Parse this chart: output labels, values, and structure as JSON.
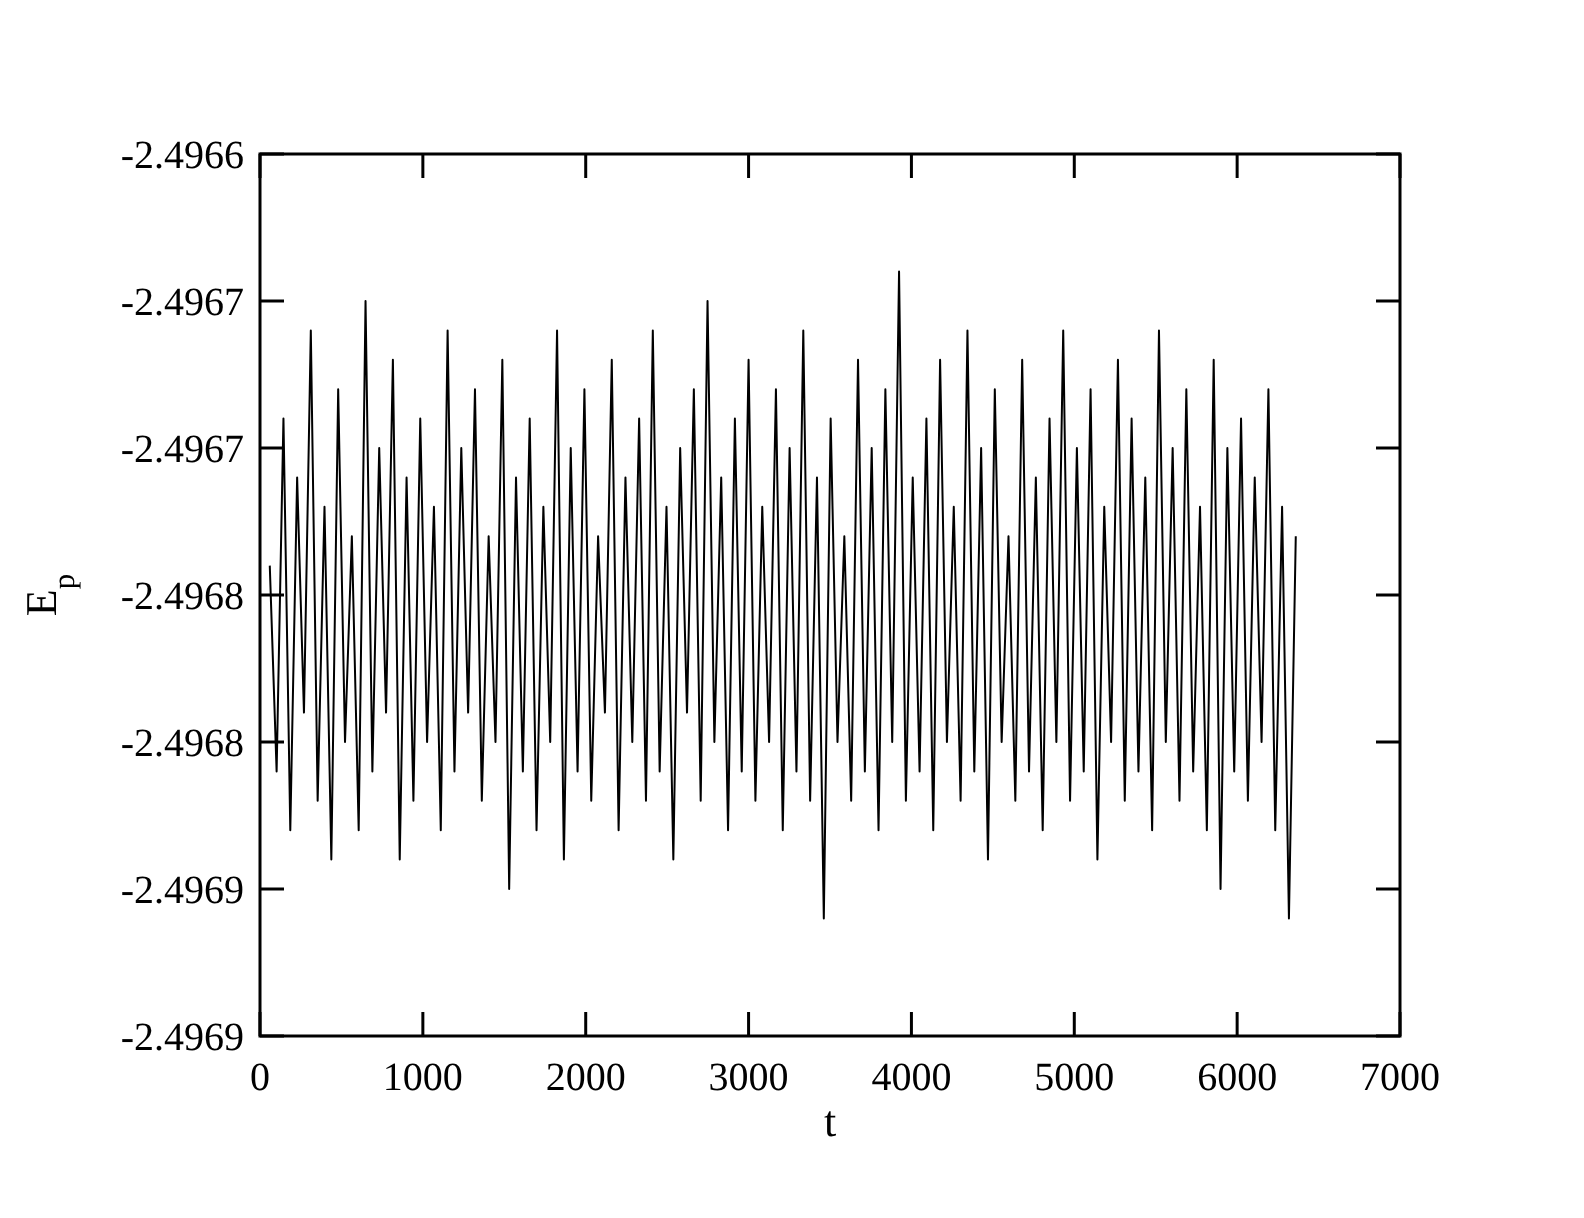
{
  "chart_data": {
    "type": "line",
    "xlabel": "t",
    "ylabel": "E$_{p}$",
    "xlim": [
      0,
      7000
    ],
    "xticks": [
      0,
      1000,
      2000,
      3000,
      4000,
      5000,
      6000,
      7000
    ],
    "ylim": [
      -2.4969,
      -2.4966
    ],
    "yticks": [
      {
        "value": -2.4966,
        "label": "-2.4966"
      },
      {
        "value": -2.49665,
        "label": "-2.4967"
      },
      {
        "value": -2.4967,
        "label": "-2.4967"
      },
      {
        "value": -2.49675,
        "label": "-2.4968"
      },
      {
        "value": -2.4968,
        "label": "-2.4968"
      },
      {
        "value": -2.49685,
        "label": "-2.4969"
      },
      {
        "value": -2.4969,
        "label": "-2.4969"
      }
    ],
    "grid": false,
    "marker": "none",
    "line_style": "solid",
    "series": [
      {
        "color": "#000000",
        "x": [
          60,
          102,
          144,
          186,
          228,
          270,
          312,
          354,
          396,
          438,
          480,
          522,
          564,
          606,
          648,
          690,
          732,
          774,
          816,
          858,
          900,
          942,
          984,
          1026,
          1068,
          1110,
          1152,
          1194,
          1236,
          1278,
          1320,
          1362,
          1404,
          1446,
          1488,
          1530,
          1572,
          1614,
          1656,
          1698,
          1740,
          1782,
          1824,
          1866,
          1908,
          1950,
          1992,
          2034,
          2076,
          2118,
          2160,
          2202,
          2244,
          2286,
          2328,
          2370,
          2412,
          2454,
          2496,
          2538,
          2580,
          2622,
          2664,
          2706,
          2748,
          2790,
          2832,
          2874,
          2916,
          2958,
          3000,
          3042,
          3084,
          3126,
          3168,
          3210,
          3252,
          3294,
          3336,
          3378,
          3420,
          3462,
          3504,
          3546,
          3588,
          3630,
          3672,
          3714,
          3756,
          3798,
          3840,
          3882,
          3924,
          3966,
          4008,
          4050,
          4092,
          4134,
          4176,
          4218,
          4260,
          4302,
          4344,
          4386,
          4428,
          4470,
          4512,
          4554,
          4596,
          4638,
          4680,
          4722,
          4764,
          4806,
          4848,
          4890,
          4932,
          4974,
          5016,
          5058,
          5100,
          5142,
          5184,
          5226,
          5268,
          5310,
          5352,
          5394,
          5436,
          5478,
          5520,
          5562,
          5604,
          5646,
          5688,
          5730,
          5772,
          5814,
          5856,
          5898,
          5940,
          5982,
          6024,
          6066,
          6108,
          6150,
          6192,
          6234,
          6276,
          6318,
          6360
        ],
        "values": [
          -2.49674,
          -2.49681,
          -2.49669,
          -2.49683,
          -2.49671,
          -2.49679,
          -2.49666,
          -2.49682,
          -2.49672,
          -2.49684,
          -2.49668,
          -2.4968,
          -2.49673,
          -2.49683,
          -2.49665,
          -2.49681,
          -2.4967,
          -2.49679,
          -2.49667,
          -2.49684,
          -2.49671,
          -2.49682,
          -2.49669,
          -2.4968,
          -2.49672,
          -2.49683,
          -2.49666,
          -2.49681,
          -2.4967,
          -2.49679,
          -2.49668,
          -2.49682,
          -2.49673,
          -2.4968,
          -2.49667,
          -2.49685,
          -2.49671,
          -2.49681,
          -2.49669,
          -2.49683,
          -2.49672,
          -2.4968,
          -2.49666,
          -2.49684,
          -2.4967,
          -2.49681,
          -2.49668,
          -2.49682,
          -2.49673,
          -2.49679,
          -2.49667,
          -2.49683,
          -2.49671,
          -2.4968,
          -2.49669,
          -2.49682,
          -2.49666,
          -2.49681,
          -2.49672,
          -2.49684,
          -2.4967,
          -2.49679,
          -2.49668,
          -2.49682,
          -2.49665,
          -2.4968,
          -2.49671,
          -2.49683,
          -2.49669,
          -2.49681,
          -2.49667,
          -2.49682,
          -2.49672,
          -2.4968,
          -2.49668,
          -2.49683,
          -2.4967,
          -2.49681,
          -2.49666,
          -2.49682,
          -2.49671,
          -2.49686,
          -2.49669,
          -2.4968,
          -2.49673,
          -2.49682,
          -2.49667,
          -2.49681,
          -2.4967,
          -2.49683,
          -2.49668,
          -2.4968,
          -2.49664,
          -2.49682,
          -2.49671,
          -2.49681,
          -2.49669,
          -2.49683,
          -2.49667,
          -2.4968,
          -2.49672,
          -2.49682,
          -2.49666,
          -2.49681,
          -2.4967,
          -2.49684,
          -2.49668,
          -2.4968,
          -2.49673,
          -2.49682,
          -2.49667,
          -2.49681,
          -2.49671,
          -2.49683,
          -2.49669,
          -2.4968,
          -2.49666,
          -2.49682,
          -2.4967,
          -2.49681,
          -2.49668,
          -2.49684,
          -2.49672,
          -2.4968,
          -2.49667,
          -2.49682,
          -2.49669,
          -2.49681,
          -2.49671,
          -2.49683,
          -2.49666,
          -2.4968,
          -2.4967,
          -2.49682,
          -2.49668,
          -2.49681,
          -2.49672,
          -2.49683,
          -2.49667,
          -2.49685,
          -2.4967,
          -2.49681,
          -2.49669,
          -2.49682,
          -2.49671,
          -2.4968,
          -2.49668,
          -2.49683,
          -2.49672,
          -2.49686,
          -2.49673
        ]
      }
    ]
  }
}
